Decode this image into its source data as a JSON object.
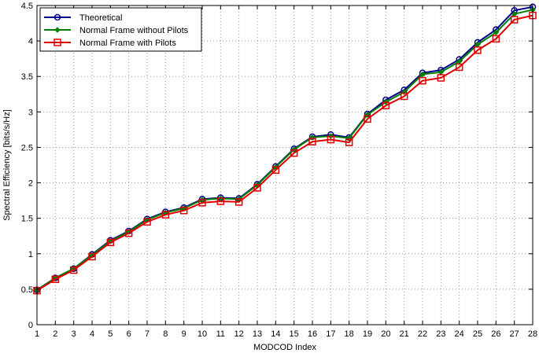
{
  "chart_data": {
    "type": "line",
    "title": "",
    "xlabel": "MODCOD Index",
    "ylabel": "Spectral Efficiency [bits/s/Hz]",
    "xlim": [
      1,
      28
    ],
    "ylim": [
      0,
      4.5
    ],
    "grid": true,
    "legend_position": "top-left",
    "x": [
      1,
      2,
      3,
      4,
      5,
      6,
      7,
      8,
      9,
      10,
      11,
      12,
      13,
      14,
      15,
      16,
      17,
      18,
      19,
      20,
      21,
      22,
      23,
      24,
      25,
      26,
      27,
      28
    ],
    "x_ticks": [
      "1",
      "2",
      "3",
      "4",
      "5",
      "6",
      "7",
      "8",
      "9",
      "10",
      "11",
      "12",
      "13",
      "14",
      "15",
      "16",
      "17",
      "18",
      "19",
      "20",
      "21",
      "22",
      "23",
      "24",
      "25",
      "26",
      "27",
      "28"
    ],
    "y_ticks": [
      "0",
      "0.5",
      "1",
      "1.5",
      "2",
      "2.5",
      "3",
      "3.5",
      "4",
      "4.5"
    ],
    "series": [
      {
        "name": "Theoretical",
        "color": "#00008b",
        "marker": "circle",
        "values": [
          0.49,
          0.66,
          0.79,
          0.99,
          1.19,
          1.32,
          1.49,
          1.59,
          1.65,
          1.77,
          1.79,
          1.78,
          1.98,
          2.23,
          2.48,
          2.65,
          2.68,
          2.64,
          2.97,
          3.17,
          3.31,
          3.55,
          3.59,
          3.74,
          3.98,
          4.16,
          4.43,
          4.48
        ]
      },
      {
        "name": "Normal Frame without Pilots",
        "color": "#008000",
        "marker": "diamond",
        "values": [
          0.49,
          0.66,
          0.79,
          0.98,
          1.18,
          1.31,
          1.48,
          1.58,
          1.64,
          1.76,
          1.78,
          1.77,
          1.97,
          2.22,
          2.47,
          2.64,
          2.66,
          2.63,
          2.96,
          3.14,
          3.28,
          3.53,
          3.56,
          3.71,
          3.95,
          4.12,
          4.38,
          4.44
        ]
      },
      {
        "name": "Normal Frame with Pilots",
        "color": "#e00000",
        "marker": "square",
        "values": [
          0.48,
          0.64,
          0.77,
          0.96,
          1.16,
          1.29,
          1.45,
          1.55,
          1.61,
          1.72,
          1.74,
          1.73,
          1.93,
          2.18,
          2.42,
          2.58,
          2.61,
          2.57,
          2.9,
          3.09,
          3.22,
          3.44,
          3.48,
          3.63,
          3.87,
          4.03,
          4.3,
          4.36
        ]
      }
    ]
  }
}
